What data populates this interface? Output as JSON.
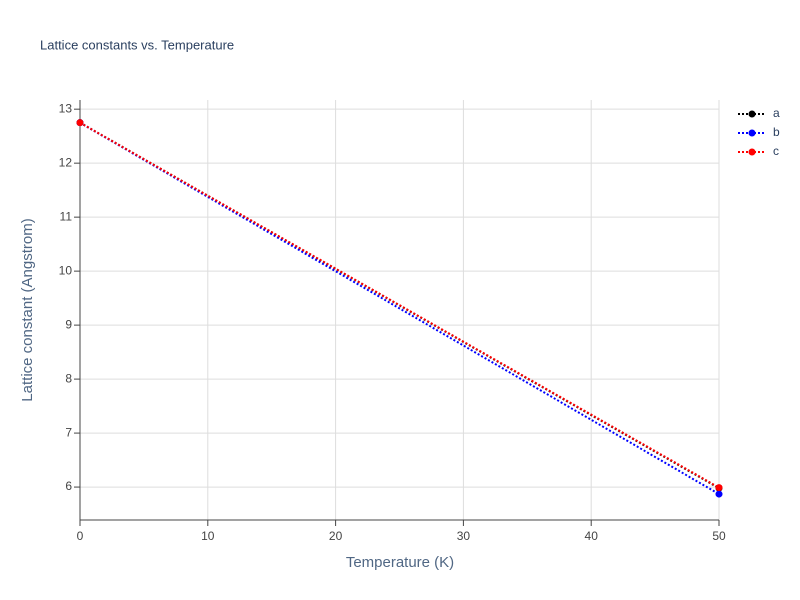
{
  "chart_data": {
    "type": "line",
    "title": "Lattice constants vs. Temperature",
    "x_label": "Temperature (K)",
    "y_label": "Lattice constant (Angstrom)",
    "x": [
      0,
      50
    ],
    "series": [
      {
        "name": "a",
        "color": "#000000",
        "values": [
          12.75,
          5.98
        ]
      },
      {
        "name": "b",
        "color": "#0000ff",
        "values": [
          12.75,
          5.87
        ]
      },
      {
        "name": "c",
        "color": "#ff0000",
        "values": [
          12.75,
          5.99
        ]
      }
    ],
    "xlim": [
      0,
      50
    ],
    "xticks": [
      0,
      10,
      20,
      30,
      40,
      50
    ],
    "ylim": [
      5.39,
      13.17
    ],
    "yticks": [
      6,
      7,
      8,
      9,
      10,
      11,
      12,
      13
    ],
    "grid": true,
    "legend": "top-right"
  }
}
